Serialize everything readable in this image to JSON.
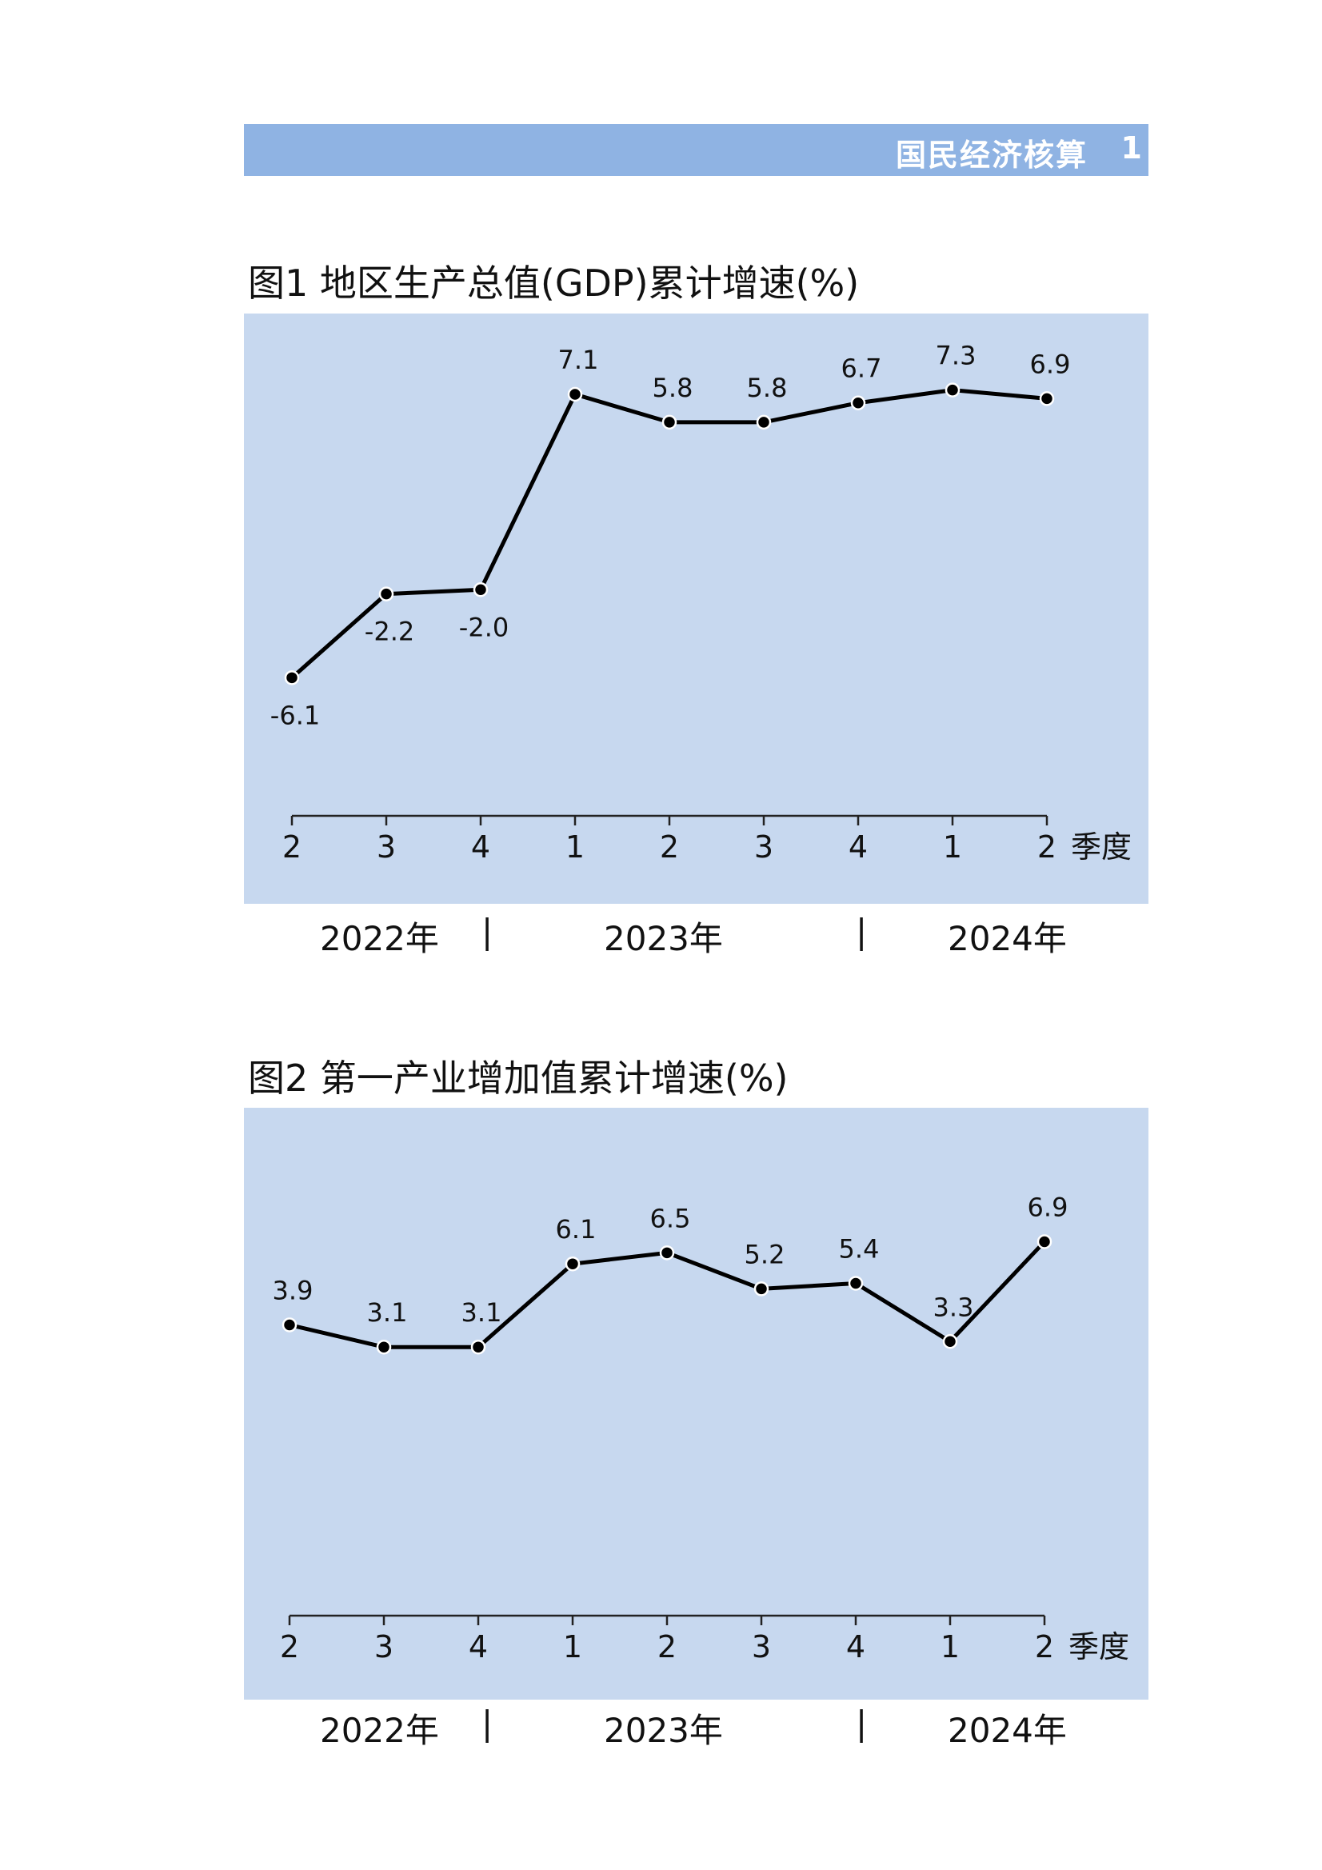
{
  "header": {
    "title": "国民经济核算",
    "page": "1"
  },
  "figures": [
    {
      "title": "图1  地区生产总值(GDP)累计增速(%)"
    },
    {
      "title": "图2  第一产业增加值累计增速(%)"
    }
  ],
  "years": [
    "2022年",
    "2023年",
    "2024年"
  ],
  "year_separator": "|",
  "x_unit": "季度",
  "line_color": "#000000",
  "panel_color": "#c7d8ef",
  "header_color": "#8fb3e3",
  "chart_data": [
    {
      "type": "line",
      "categories": [
        "2",
        "3",
        "4",
        "1",
        "2",
        "3",
        "4",
        "1",
        "2"
      ],
      "series": [
        {
          "values": [
            -6.1,
            -2.2,
            -2.0,
            7.1,
            5.8,
            5.8,
            6.7,
            7.3,
            6.9
          ]
        }
      ],
      "labels": [
        "-6.1",
        "-2.2",
        "-2.0",
        "7.1",
        "5.8",
        "5.8",
        "6.7",
        "7.3",
        "6.9"
      ],
      "label_pos": [
        "below",
        "below",
        "below",
        "above",
        "above",
        "above",
        "above",
        "above",
        "above"
      ],
      "xlabel": "季度",
      "ylim": [
        -10,
        9
      ],
      "grid": false
    },
    {
      "type": "line",
      "categories": [
        "2",
        "3",
        "4",
        "1",
        "2",
        "3",
        "4",
        "1",
        "2"
      ],
      "series": [
        {
          "values": [
            3.9,
            3.1,
            3.1,
            6.1,
            6.5,
            5.2,
            5.4,
            3.3,
            6.9
          ]
        }
      ],
      "labels": [
        "3.9",
        "3.1",
        "3.1",
        "6.1",
        "6.5",
        "5.2",
        "5.4",
        "3.3",
        "6.9"
      ],
      "label_pos": [
        "above",
        "above",
        "above",
        "above",
        "above",
        "above",
        "above",
        "above",
        "above"
      ],
      "xlabel": "季度",
      "ylim": [
        -5,
        10
      ],
      "grid": false
    }
  ]
}
